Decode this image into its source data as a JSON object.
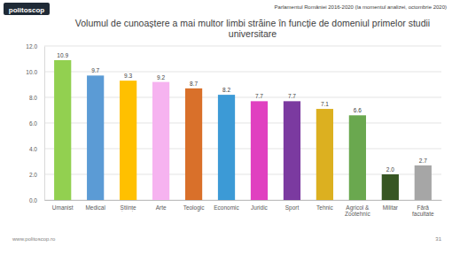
{
  "page": {
    "logo": "politoscop",
    "header": "Parlamentul României 2016-2020 (la momentul analizei, octombrie 2020)",
    "footer": "www.politoscop.ro",
    "page_number": 31
  },
  "chart_data": {
    "type": "bar",
    "title": "Volumul de cunoaștere a mai multor limbi străine în funcție de  domeniul primelor studii universitare",
    "categories": [
      "Umanist",
      "Medical",
      "Științe",
      "Arte",
      "Teologic",
      "Economic",
      "Juridic",
      "Sport",
      "Tehnic",
      "Agricol &\nZootehnic",
      "Militar",
      "Fără\nfacultate"
    ],
    "values": [
      10.9,
      9.7,
      9.3,
      9.2,
      8.7,
      8.2,
      7.7,
      7.7,
      7.1,
      6.6,
      2.0,
      2.7
    ],
    "value_labels": [
      "10.9",
      "9.7",
      "9.3",
      "9.2",
      "8.7",
      "8.2",
      "7.7",
      "7.7",
      "7.1",
      "6.6",
      "2.0",
      "2.7"
    ],
    "colors": [
      "#92d050",
      "#5b9bd5",
      "#ffc000",
      "#f6b3f0",
      "#d9702a",
      "#3c9ad6",
      "#e040c0",
      "#7b3aa0",
      "#dcb020",
      "#6aa84f",
      "#375623",
      "#a6a6a6"
    ],
    "ylim": [
      0,
      12
    ],
    "yticks": [
      {
        "value": 0,
        "label": "0.0"
      },
      {
        "value": 2,
        "label": "2.0"
      },
      {
        "value": 4,
        "label": "4.0"
      },
      {
        "value": 6,
        "label": "6.0"
      },
      {
        "value": 8,
        "label": "8.0"
      },
      {
        "value": 10,
        "label": "10.0"
      },
      {
        "value": 12,
        "label": "12.0"
      }
    ],
    "grid": true,
    "data_labels": true
  }
}
